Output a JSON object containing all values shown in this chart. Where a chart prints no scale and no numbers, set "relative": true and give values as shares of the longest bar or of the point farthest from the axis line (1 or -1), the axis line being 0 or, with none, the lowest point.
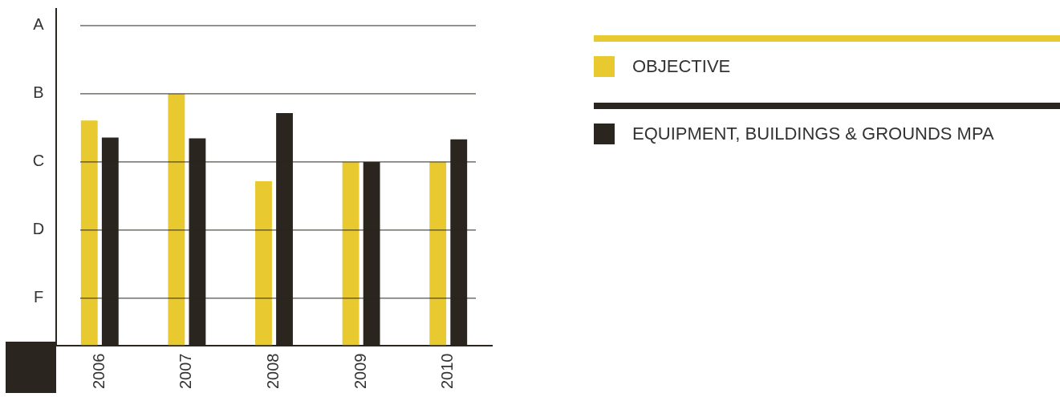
{
  "chart_data": {
    "type": "bar",
    "categories": [
      "2006",
      "2007",
      "2008",
      "2009",
      "2010"
    ],
    "series": [
      {
        "name": "OBJECTIVE",
        "color": "#e8c930",
        "values": [
          0.894,
          1.0,
          0.652,
          0.729,
          0.729
        ]
      },
      {
        "name": "EQUIPMENT, BUILDINGS & GROUNDS MPA",
        "color": "#2a261f",
        "values": [
          0.826,
          0.823,
          0.923,
          0.729,
          0.819
        ]
      }
    ],
    "relative": true,
    "ref_lines": [
      {
        "axis": "y",
        "value": 1.271,
        "label": "A",
        "color": "#2a261f"
      },
      {
        "axis": "y",
        "value": 1.0,
        "label": "B",
        "color": "#2a261f"
      },
      {
        "axis": "y",
        "value": 0.729,
        "label": "C",
        "color": "#2a261f"
      },
      {
        "axis": "y",
        "value": 0.458,
        "label": "D",
        "color": "#2a261f"
      },
      {
        "axis": "y",
        "value": 0.187,
        "label": "F",
        "color": "#2a261f"
      }
    ],
    "legend": "right"
  }
}
